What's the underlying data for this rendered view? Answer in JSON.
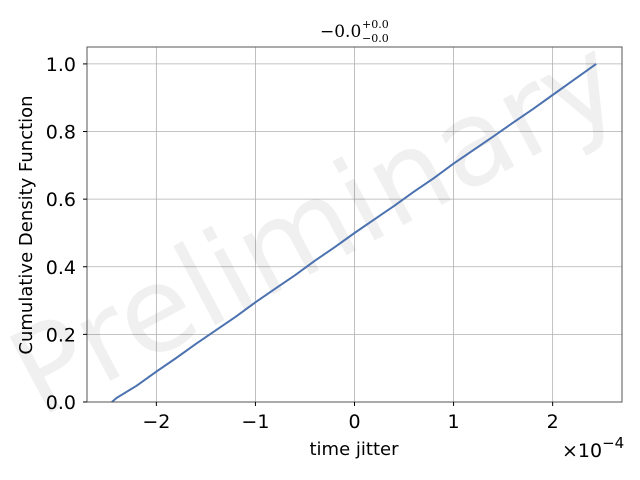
{
  "chart_data": {
    "type": "line",
    "title": {
      "main": "−0.0",
      "sup": "+0.0",
      "sub": "−0.0"
    },
    "xlabel": "time jitter",
    "ylabel": "Cumulative Density Function",
    "x_offset_label": "×10",
    "x_offset_exponent": "−4",
    "watermark": "Preliminary",
    "xlim": [
      -2.7,
      2.7
    ],
    "ylim": [
      0.0,
      1.05
    ],
    "xticks": [
      -2,
      -1,
      0,
      1,
      2
    ],
    "xtick_labels": [
      "−2",
      "−1",
      "0",
      "1",
      "2"
    ],
    "yticks": [
      0.0,
      0.2,
      0.4,
      0.6,
      0.8,
      1.0
    ],
    "ytick_labels": [
      "0.0",
      "0.2",
      "0.4",
      "0.6",
      "0.8",
      "1.0"
    ],
    "grid": true,
    "series": [
      {
        "color": "#4c72b0",
        "x": [
          -2.45,
          -2.4,
          -2.2,
          -2.0,
          -1.8,
          -1.6,
          -1.4,
          -1.2,
          -1.0,
          -0.8,
          -0.6,
          -0.4,
          -0.2,
          0.0,
          0.2,
          0.4,
          0.6,
          0.8,
          1.0,
          1.2,
          1.4,
          1.6,
          1.8,
          2.0,
          2.2,
          2.44
        ],
        "y": [
          0.0,
          0.012,
          0.048,
          0.09,
          0.13,
          0.172,
          0.212,
          0.252,
          0.295,
          0.335,
          0.375,
          0.418,
          0.458,
          0.5,
          0.54,
          0.58,
          0.622,
          0.662,
          0.705,
          0.745,
          0.785,
          0.826,
          0.866,
          0.908,
          0.95,
          1.0
        ]
      }
    ]
  }
}
